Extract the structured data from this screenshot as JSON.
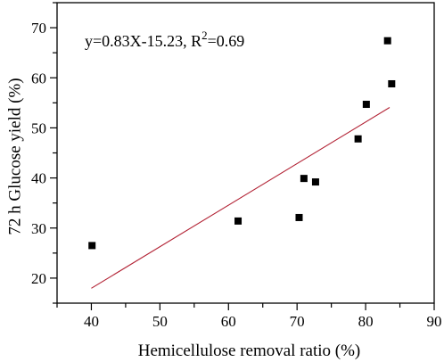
{
  "chart_data": {
    "type": "scatter",
    "xlabel": "Hemicellulose removal ratio (%)",
    "ylabel": "72 h Glucose yield (%)",
    "xlim": [
      35,
      90
    ],
    "ylim": [
      15,
      75
    ],
    "x_ticks": [
      40,
      50,
      60,
      70,
      80,
      90
    ],
    "y_ticks": [
      20,
      30,
      40,
      50,
      60,
      70
    ],
    "grid": false,
    "marker": "square",
    "points": [
      {
        "x": 40.1,
        "y": 26.5
      },
      {
        "x": 61.4,
        "y": 31.4
      },
      {
        "x": 70.3,
        "y": 32.1
      },
      {
        "x": 71.0,
        "y": 39.9
      },
      {
        "x": 72.7,
        "y": 39.2
      },
      {
        "x": 78.9,
        "y": 47.8
      },
      {
        "x": 80.1,
        "y": 54.7
      },
      {
        "x": 83.2,
        "y": 67.4
      },
      {
        "x": 83.8,
        "y": 58.8
      }
    ],
    "fit_line": {
      "slope": 0.83,
      "intercept": -15.23,
      "x_range": [
        40,
        83.5
      ],
      "color": "#b22234"
    },
    "annotation": {
      "prefix": "y=0.83X-15.23, R",
      "superscript": "2",
      "suffix": "=0.69"
    },
    "marker_color": "#000000"
  }
}
